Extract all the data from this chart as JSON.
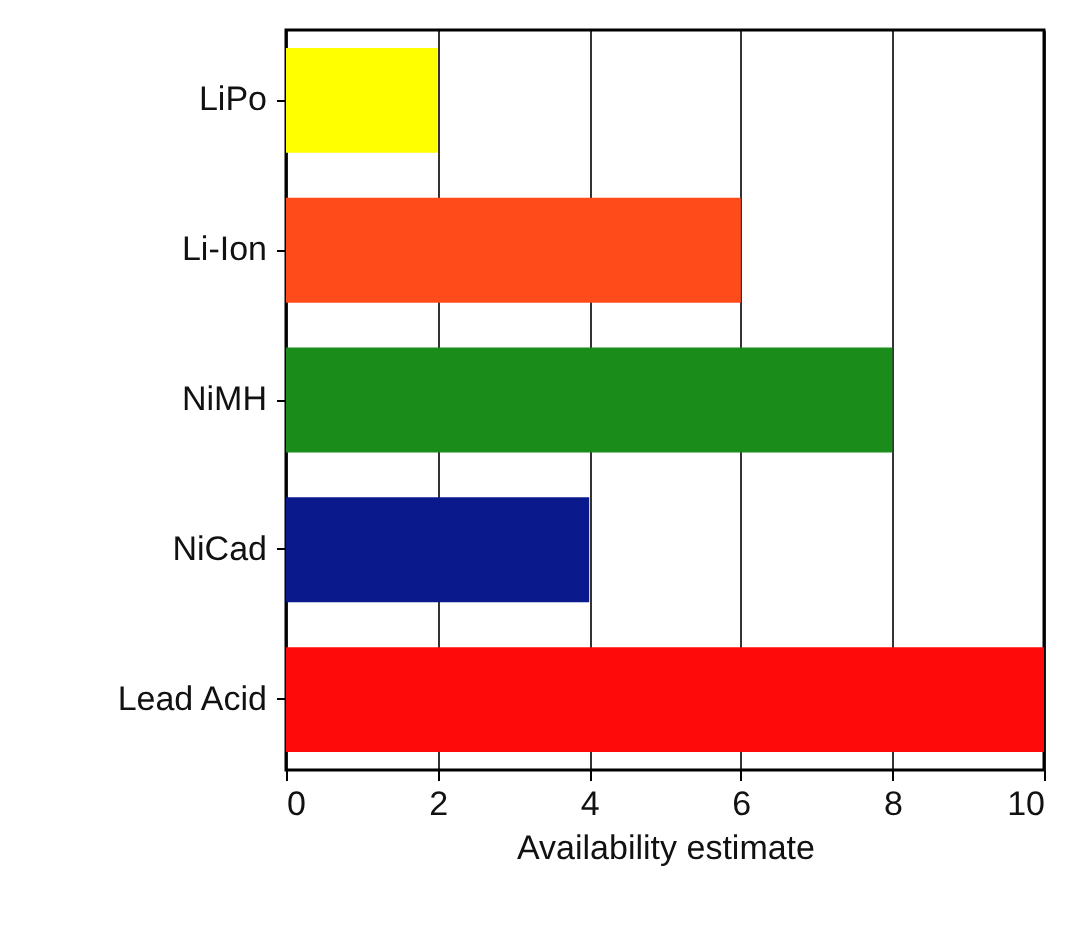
{
  "chart_data": {
    "type": "bar",
    "orientation": "horizontal",
    "xlabel": "Availability estimate",
    "categories": [
      "LiPo",
      "Li-Ion",
      "NiMH",
      "NiCad",
      "Lead Acid"
    ],
    "values": [
      2,
      6,
      8,
      4,
      10
    ],
    "colors": [
      "#ffff00",
      "#ff4a1a",
      "#1a8c1a",
      "#0a1a8c",
      "#ff0a0a"
    ],
    "xlim": [
      0,
      10
    ],
    "xticks": [
      0,
      2,
      4,
      6,
      8,
      10
    ],
    "grid": "x"
  }
}
